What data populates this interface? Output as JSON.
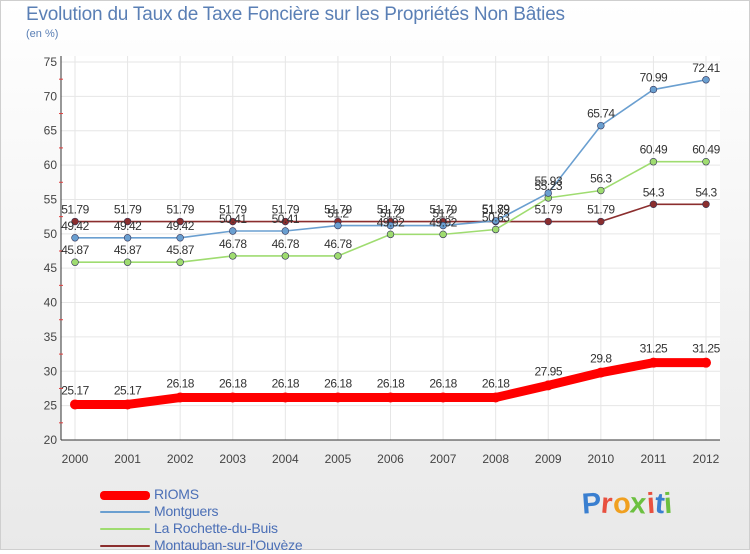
{
  "header": {
    "title": "Evolution du Taux de Taxe Foncière sur les Propriétés Non Bâties",
    "subtitle": "(en %)"
  },
  "brand": {
    "text": "Proxiti",
    "colors": [
      "#3a7fd0",
      "#e8503f",
      "#f0a020",
      "#6cc040",
      "#e8503f",
      "#3a7fd0",
      "#6cc040"
    ]
  },
  "chart_data": {
    "type": "line",
    "x": [
      "2000",
      "2001",
      "2002",
      "2003",
      "2004",
      "2005",
      "2006",
      "2007",
      "2008",
      "2009",
      "2010",
      "2011",
      "2012"
    ],
    "ylim": [
      20,
      75
    ],
    "yticks": [
      "20",
      "25",
      "30",
      "35",
      "40",
      "45",
      "50",
      "55",
      "60",
      "65",
      "70",
      "75"
    ],
    "grid": true,
    "legend_position": "bottom-left",
    "series": [
      {
        "name": "RIOMS",
        "color": "#ff0000",
        "values": [
          25.17,
          25.17,
          26.18,
          26.18,
          26.18,
          26.18,
          26.18,
          26.18,
          26.18,
          27.95,
          29.8,
          31.25,
          31.25
        ],
        "labels": [
          "25.17",
          "25.17",
          "26.18",
          "26.18",
          "26.18",
          "26.18",
          "26.18",
          "26.18",
          "26.18",
          "27.95",
          "29.8",
          "31.25",
          "31.25"
        ]
      },
      {
        "name": "Montguers",
        "color": "#6a9fd0",
        "values": [
          49.42,
          49.42,
          49.42,
          50.41,
          50.41,
          51.2,
          51.2,
          51.2,
          51.89,
          55.93,
          65.74,
          70.99,
          72.41
        ],
        "labels": [
          "49.42",
          "49.42",
          "49.42",
          "50.41",
          "50.41",
          "51.2",
          "51.2",
          "51.2",
          "51.89",
          "55.93",
          "65.74",
          "70.99",
          "72.41"
        ]
      },
      {
        "name": "La Rochette-du-Buis",
        "color": "#9fdc70",
        "values": [
          45.87,
          45.87,
          45.87,
          46.78,
          46.78,
          46.78,
          49.92,
          49.92,
          50.63,
          55.23,
          56.3,
          60.49,
          60.49
        ],
        "labels": [
          "45.87",
          "45.87",
          "45.87",
          "46.78",
          "46.78",
          "46.78",
          "49.92",
          "49.92",
          "50.63",
          "55.23",
          "56.3",
          "60.49",
          "60.49"
        ]
      },
      {
        "name": "Montauban-sur-l'Ouvèze",
        "color": "#8b2e2e",
        "values": [
          51.79,
          51.79,
          51.79,
          51.79,
          51.79,
          51.79,
          51.79,
          51.79,
          51.79,
          51.79,
          51.79,
          54.3,
          54.3
        ],
        "labels": [
          "51.79",
          "51.79",
          "51.79",
          "51.79",
          "51.79",
          "51.79",
          "51.79",
          "51.79",
          "51.79",
          "51.79",
          "51.79",
          "54.3",
          "54.3"
        ]
      }
    ]
  }
}
